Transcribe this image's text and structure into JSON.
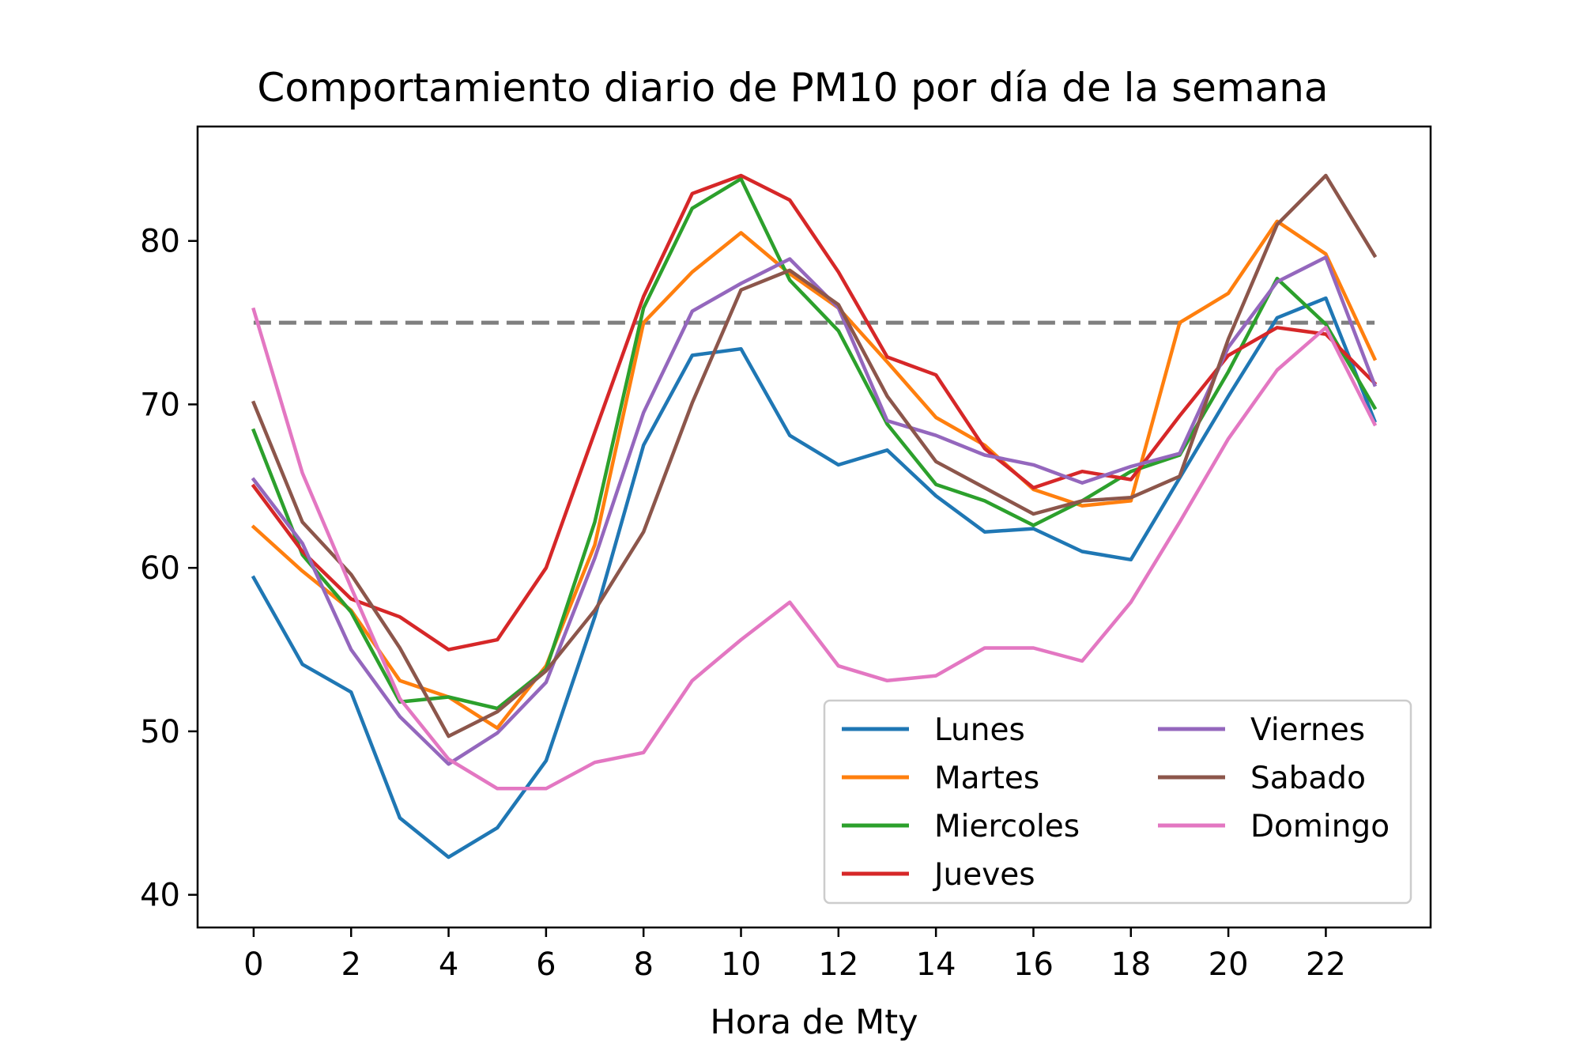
{
  "chart_data": {
    "type": "line",
    "title": "Comportamiento diario de PM10 por día de la semana",
    "xlabel": "Hora de Mty",
    "ylabel": "",
    "xlim": [
      -1.15,
      24.15
    ],
    "ylim": [
      38,
      87
    ],
    "xticks": [
      0,
      2,
      4,
      6,
      8,
      10,
      12,
      14,
      16,
      18,
      20,
      22
    ],
    "yticks": [
      40,
      50,
      60,
      70,
      80
    ],
    "grid": false,
    "legend_position": "lower-right",
    "legend_columns": 2,
    "x": [
      0,
      1,
      2,
      3,
      4,
      5,
      6,
      7,
      8,
      9,
      10,
      11,
      12,
      13,
      14,
      15,
      16,
      17,
      18,
      19,
      20,
      21,
      22,
      23
    ],
    "reference_line": {
      "y": 75,
      "x_range": [
        0,
        23
      ],
      "color": "#7f7f7f",
      "style": "dashed"
    },
    "series": [
      {
        "name": "Lunes",
        "color": "#1f77b4",
        "values": [
          59.4,
          54.1,
          52.4,
          44.7,
          42.3,
          44.1,
          48.2,
          57.0,
          67.5,
          73.0,
          73.4,
          68.1,
          66.3,
          67.2,
          64.4,
          62.2,
          62.4,
          61.0,
          60.5,
          65.5,
          70.5,
          75.3,
          76.5,
          69.0
        ]
      },
      {
        "name": "Martes",
        "color": "#ff7f0e",
        "values": [
          62.5,
          59.8,
          57.4,
          53.1,
          52.1,
          50.2,
          54.0,
          61.4,
          75.0,
          78.1,
          80.5,
          78.0,
          75.9,
          72.6,
          69.2,
          67.5,
          64.8,
          63.8,
          64.1,
          75.0,
          76.8,
          81.2,
          79.2,
          72.8
        ]
      },
      {
        "name": "Miercoles",
        "color": "#2ca02c",
        "values": [
          68.4,
          60.8,
          57.3,
          51.8,
          52.1,
          51.4,
          53.8,
          62.8,
          75.9,
          82.0,
          83.8,
          77.6,
          74.5,
          68.8,
          65.1,
          64.1,
          62.6,
          64.1,
          65.9,
          66.9,
          72.0,
          77.7,
          74.9,
          69.8
        ]
      },
      {
        "name": "Jueves",
        "color": "#d62728",
        "values": [
          65.0,
          61.0,
          58.1,
          57.0,
          55.0,
          55.6,
          60.0,
          68.3,
          76.6,
          82.9,
          84.0,
          82.5,
          78.1,
          72.9,
          71.8,
          67.3,
          64.9,
          65.9,
          65.4,
          69.3,
          73.0,
          74.7,
          74.3,
          71.3
        ]
      },
      {
        "name": "Viernes",
        "color": "#9467bd",
        "values": [
          65.4,
          61.5,
          55.0,
          50.9,
          48.0,
          49.9,
          53.0,
          60.6,
          69.5,
          75.7,
          77.4,
          78.9,
          75.9,
          69.0,
          68.1,
          66.9,
          66.3,
          65.2,
          66.2,
          67.0,
          73.5,
          77.5,
          79.0,
          71.2
        ]
      },
      {
        "name": "Sabado",
        "color": "#8c564b",
        "values": [
          70.1,
          62.8,
          59.6,
          55.1,
          49.7,
          51.2,
          53.7,
          57.4,
          62.2,
          70.1,
          77.0,
          78.2,
          76.1,
          70.5,
          66.5,
          64.9,
          63.3,
          64.1,
          64.3,
          65.6,
          74.0,
          81.0,
          84.0,
          79.1
        ]
      },
      {
        "name": "Domingo",
        "color": "#e377c2",
        "values": [
          75.8,
          65.8,
          58.8,
          52.0,
          48.3,
          46.5,
          46.5,
          48.1,
          48.7,
          53.1,
          55.6,
          57.9,
          54.0,
          53.1,
          53.4,
          55.1,
          55.1,
          54.3,
          57.9,
          62.8,
          67.9,
          72.1,
          74.7,
          68.8
        ]
      }
    ]
  }
}
